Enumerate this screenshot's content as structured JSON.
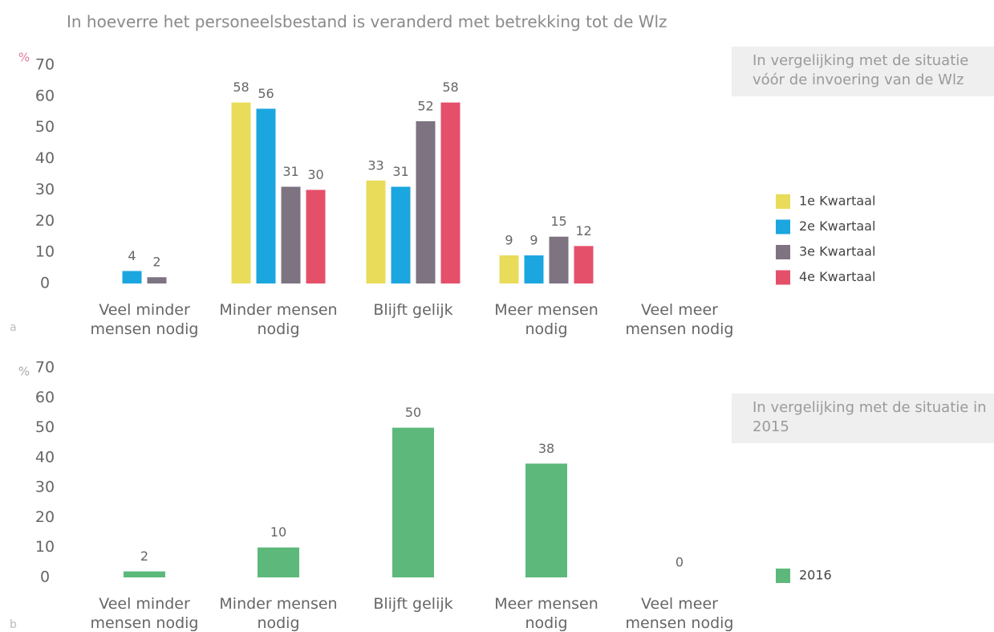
{
  "chart_data": [
    {
      "type": "bar",
      "panel_label": "a",
      "title": "In hoeverre het personeelsbestand is veranderd met betrekking tot de Wlz",
      "y_unit": "%",
      "annotation": "In vergelijking met de situatie vóór de invoering van de Wlz",
      "categories": [
        "Veel minder mensen nodig",
        "Minder mensen nodig",
        "Blijft gelijk",
        "Meer mensen nodig",
        "Veel meer mensen nodig"
      ],
      "series": [
        {
          "name": "1e Kwartaal",
          "color": "#e8dc5a",
          "values": [
            null,
            58,
            33,
            9,
            null
          ]
        },
        {
          "name": "2e Kwartaal",
          "color": "#1ba6df",
          "values": [
            4,
            56,
            31,
            9,
            null
          ]
        },
        {
          "name": "3e Kwartaal",
          "color": "#7d7381",
          "values": [
            2,
            31,
            52,
            15,
            null
          ]
        },
        {
          "name": "4e Kwartaal",
          "color": "#e4506a",
          "values": [
            null,
            30,
            58,
            12,
            null
          ]
        }
      ],
      "ylim": [
        0,
        70
      ],
      "yticks": [
        0,
        10,
        20,
        30,
        40,
        50,
        60,
        70
      ],
      "legend": "right"
    },
    {
      "type": "bar",
      "panel_label": "b",
      "y_unit": "%",
      "annotation": "In vergelijking met de situatie in 2015",
      "categories": [
        "Veel minder mensen nodig",
        "Minder mensen nodig",
        "Blijft gelijk",
        "Meer mensen nodig",
        "Veel meer mensen nodig"
      ],
      "series": [
        {
          "name": "2016",
          "color": "#5db97b",
          "values": [
            2,
            10,
            50,
            38,
            0
          ]
        }
      ],
      "ylim": [
        0,
        70
      ],
      "yticks": [
        0,
        10,
        20,
        30,
        40,
        50,
        60,
        70
      ],
      "legend": "right"
    }
  ]
}
